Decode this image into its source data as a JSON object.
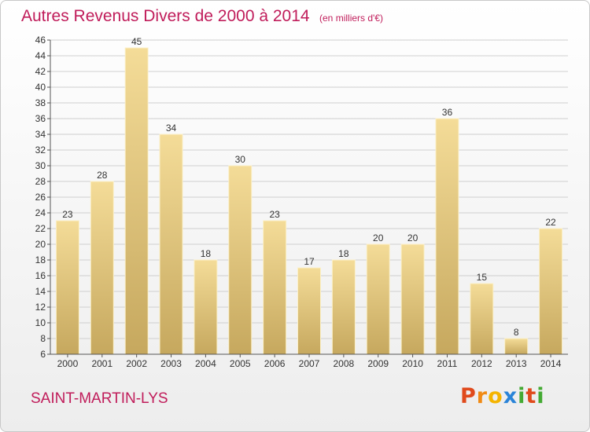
{
  "header": {
    "title": "Autres Revenus Divers de 2000 à 2014",
    "unit": "(en milliers d'€)"
  },
  "footer": {
    "town": "SAINT-MARTIN-LYS",
    "logo_letters": [
      "P",
      "r",
      "o",
      "x",
      "i",
      "t",
      "i"
    ],
    "logo_colors": [
      "#e04a1c",
      "#f08a14",
      "#f4b400",
      "#2a84d8",
      "#44aa33",
      "#e04a1c",
      "#44aa33"
    ]
  },
  "colors": {
    "bar_top": "#f4dc98",
    "bar_bottom": "#c6a85e",
    "bar_edge": "#fbf0c8",
    "grid": "#cfcfcf",
    "axis": "#555555"
  },
  "chart_data": {
    "type": "bar",
    "title": "Autres Revenus Divers de 2000 à 2014",
    "subtitle": "(en milliers d'€)",
    "categories": [
      "2000",
      "2001",
      "2002",
      "2003",
      "2004",
      "2005",
      "2006",
      "2007",
      "2008",
      "2009",
      "2010",
      "2011",
      "2012",
      "2013",
      "2014"
    ],
    "values": [
      23,
      28,
      45,
      34,
      18,
      30,
      23,
      17,
      18,
      20,
      20,
      36,
      15,
      8,
      22
    ],
    "ylim": [
      6,
      46
    ],
    "yticks": [
      6,
      8,
      10,
      12,
      14,
      16,
      18,
      20,
      22,
      24,
      26,
      28,
      30,
      32,
      34,
      36,
      38,
      40,
      42,
      44,
      46
    ],
    "grid": true,
    "xlabel": "",
    "ylabel": ""
  }
}
